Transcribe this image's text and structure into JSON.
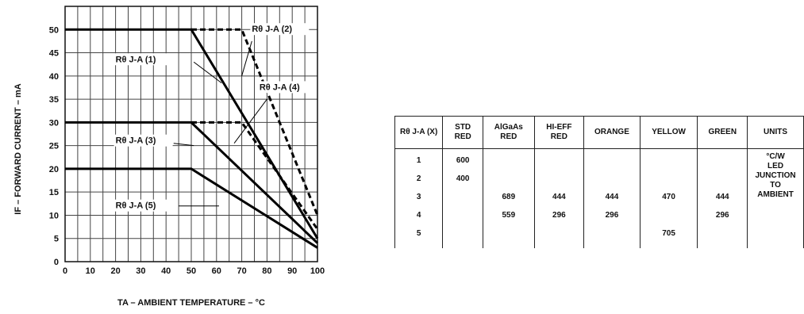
{
  "chart_data": {
    "type": "line",
    "xlabel": "TA – AMBIENT TEMPERATURE – °C",
    "ylabel": "IF – FORWARD CURRENT – mA",
    "xlim": [
      0,
      100
    ],
    "ylim": [
      0,
      55
    ],
    "xticks": [
      0,
      10,
      20,
      30,
      40,
      50,
      60,
      70,
      80,
      90,
      100
    ],
    "yticks": [
      0,
      5,
      10,
      15,
      20,
      25,
      30,
      35,
      40,
      45,
      50
    ],
    "grid": true,
    "series": [
      {
        "name": "Rθ J-A (1)",
        "style": "solid",
        "x": [
          0,
          50,
          100
        ],
        "y": [
          50,
          50,
          5
        ]
      },
      {
        "name": "Rθ J-A (2)",
        "style": "dashed",
        "x": [
          50,
          70,
          100
        ],
        "y": [
          50,
          50,
          10
        ]
      },
      {
        "name": "Rθ J-A (3)",
        "style": "solid",
        "x": [
          0,
          50,
          100
        ],
        "y": [
          30,
          30,
          4
        ]
      },
      {
        "name": "Rθ J-A (4)",
        "style": "dashed",
        "x": [
          50,
          70,
          100
        ],
        "y": [
          30,
          30,
          7
        ]
      },
      {
        "name": "Rθ J-A (5)",
        "style": "solid",
        "x": [
          0,
          50,
          100
        ],
        "y": [
          20,
          20,
          3
        ]
      }
    ]
  },
  "table": {
    "headers": [
      [
        "Rθ J-A (X)"
      ],
      [
        "STD",
        "RED"
      ],
      [
        "AlGaAs",
        "RED"
      ],
      [
        "HI-EFF",
        "RED"
      ],
      [
        "ORANGE"
      ],
      [
        "YELLOW"
      ],
      [
        "GREEN"
      ],
      [
        "UNITS"
      ]
    ],
    "rows": [
      [
        "1",
        "600",
        "",
        "",
        "",
        "",
        ""
      ],
      [
        "2",
        "400",
        "",
        "",
        "",
        "",
        ""
      ],
      [
        "3",
        "",
        "689",
        "444",
        "444",
        "470",
        "444"
      ],
      [
        "4",
        "",
        "559",
        "296",
        "296",
        "",
        "296"
      ],
      [
        "5",
        "",
        "",
        "",
        "",
        "705",
        ""
      ]
    ],
    "units_text": [
      "°C/W",
      "LED",
      "JUNCTION",
      "TO",
      "AMBIENT"
    ]
  }
}
